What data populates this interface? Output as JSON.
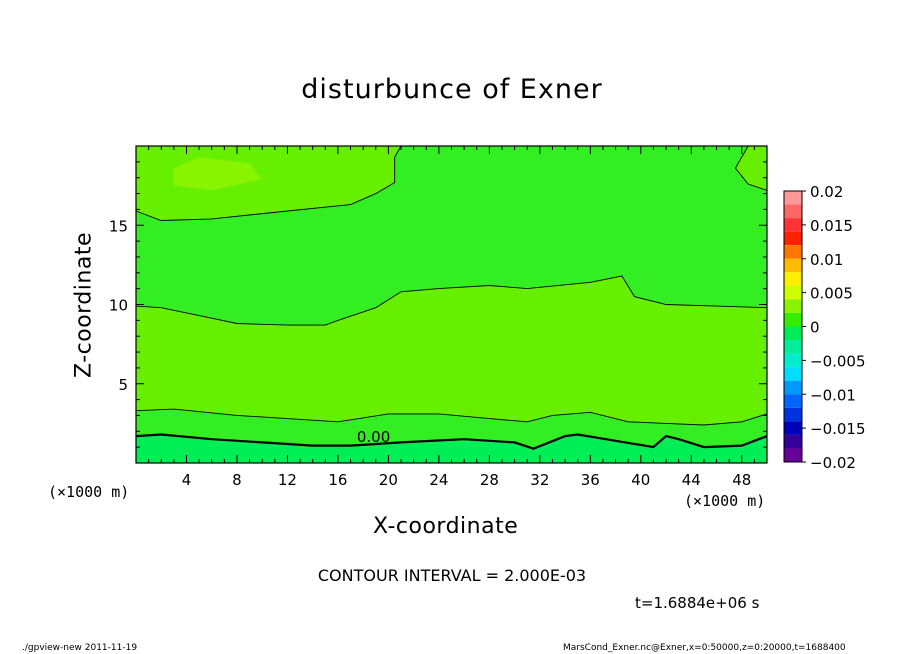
{
  "title": "disturbunce of Exner",
  "footer": {
    "left": "./gpview-new   2011-11-19",
    "right": "MarsCond_Exner.nc@Exner,x=0:50000,z=0:20000,t=1688400"
  },
  "contour_interval": "CONTOUR INTERVAL = 2.000E-03",
  "time_label": "t=1.6884e+06 s",
  "colors": {
    "frame": "#000000",
    "band_neg": "#00ee55",
    "band_zero": "#33ee22",
    "band_pos": "#66f000",
    "band_pos2": "#88f400"
  },
  "chart_data": {
    "type": "heatmap",
    "title": "disturbunce of Exner",
    "xlabel": "X-coordinate",
    "ylabel": "Z-coordinate",
    "x_unit_label": "(×1000 m)",
    "xlim": [
      0,
      50
    ],
    "ylim": [
      0,
      20
    ],
    "x_ticks": [
      4,
      8,
      12,
      16,
      20,
      24,
      28,
      32,
      36,
      40,
      44,
      48
    ],
    "y_ticks": [
      5,
      10,
      15
    ],
    "contour_labels": [
      {
        "text": "0.00",
        "x": 17.5,
        "z": 1.2
      }
    ],
    "colorbar": {
      "ticks": [
        "0.02",
        "0.015",
        "0.01",
        "0.005",
        "0",
        "−0.005",
        "−0.01",
        "−0.015",
        "−0.02"
      ],
      "levels": [
        {
          "from": 0.018,
          "to": 0.02,
          "color": "#ff9999"
        },
        {
          "from": 0.016,
          "to": 0.018,
          "color": "#ff6666"
        },
        {
          "from": 0.014,
          "to": 0.016,
          "color": "#ff3333"
        },
        {
          "from": 0.012,
          "to": 0.014,
          "color": "#ff2200"
        },
        {
          "from": 0.01,
          "to": 0.012,
          "color": "#ff7700"
        },
        {
          "from": 0.008,
          "to": 0.01,
          "color": "#ffbb00"
        },
        {
          "from": 0.006,
          "to": 0.008,
          "color": "#ffee00"
        },
        {
          "from": 0.004,
          "to": 0.006,
          "color": "#ccff00"
        },
        {
          "from": 0.002,
          "to": 0.004,
          "color": "#88f400"
        },
        {
          "from": 0.0,
          "to": 0.002,
          "color": "#33ee00"
        },
        {
          "from": -0.002,
          "to": 0.0,
          "color": "#00ee55"
        },
        {
          "from": -0.004,
          "to": -0.002,
          "color": "#00ee99"
        },
        {
          "from": -0.006,
          "to": -0.004,
          "color": "#00eecc"
        },
        {
          "from": -0.008,
          "to": -0.006,
          "color": "#00ddff"
        },
        {
          "from": -0.01,
          "to": -0.008,
          "color": "#0099ff"
        },
        {
          "from": -0.012,
          "to": -0.01,
          "color": "#0066ff"
        },
        {
          "from": -0.014,
          "to": -0.012,
          "color": "#0033dd"
        },
        {
          "from": -0.016,
          "to": -0.014,
          "color": "#0000bb"
        },
        {
          "from": -0.018,
          "to": -0.016,
          "color": "#330099"
        },
        {
          "from": -0.02,
          "to": -0.018,
          "color": "#660099"
        }
      ]
    },
    "contour_lines": [
      {
        "level": 0.0,
        "bold": true,
        "points": [
          [
            0,
            1.7
          ],
          [
            2,
            1.8
          ],
          [
            6,
            1.5
          ],
          [
            10,
            1.3
          ],
          [
            14,
            1.1
          ],
          [
            17,
            1.1
          ],
          [
            21,
            1.3
          ],
          [
            26,
            1.5
          ],
          [
            30,
            1.3
          ],
          [
            31.5,
            0.9
          ],
          [
            34,
            1.7
          ],
          [
            35,
            1.8
          ],
          [
            38,
            1.4
          ],
          [
            41,
            1.0
          ],
          [
            42,
            1.7
          ],
          [
            43,
            1.5
          ],
          [
            45,
            1.0
          ],
          [
            48,
            1.1
          ],
          [
            50,
            1.7
          ]
        ]
      },
      {
        "level": 0.002,
        "bold": false,
        "points": [
          [
            0,
            3.3
          ],
          [
            3,
            3.4
          ],
          [
            8,
            3.0
          ],
          [
            12,
            2.8
          ],
          [
            16,
            2.6
          ],
          [
            20,
            3.1
          ],
          [
            24,
            3.1
          ],
          [
            28,
            2.8
          ],
          [
            31,
            2.6
          ],
          [
            33,
            3.0
          ],
          [
            36,
            3.2
          ],
          [
            39,
            2.6
          ],
          [
            42,
            2.5
          ],
          [
            45,
            2.4
          ],
          [
            48,
            2.6
          ],
          [
            50,
            3.1
          ]
        ]
      },
      {
        "level": 0.002,
        "bold": false,
        "points": [
          [
            0,
            9.9
          ],
          [
            2,
            9.8
          ],
          [
            5,
            9.3
          ],
          [
            8,
            8.8
          ],
          [
            12,
            8.7
          ],
          [
            15,
            8.7
          ],
          [
            16,
            9.0
          ],
          [
            19,
            9.8
          ],
          [
            21,
            10.8
          ],
          [
            24,
            11.0
          ],
          [
            28,
            11.2
          ],
          [
            31,
            11.0
          ],
          [
            36,
            11.4
          ],
          [
            38.5,
            11.8
          ],
          [
            39.5,
            10.5
          ],
          [
            42,
            10.0
          ],
          [
            46,
            9.9
          ],
          [
            50,
            9.8
          ]
        ]
      },
      {
        "level": 0.004,
        "bold": false,
        "points": [
          [
            0,
            15.9
          ],
          [
            2,
            15.3
          ],
          [
            6,
            15.4
          ],
          [
            12,
            15.9
          ],
          [
            17,
            16.3
          ],
          [
            19,
            17.0
          ],
          [
            20.5,
            17.7
          ],
          [
            20.5,
            19.3
          ],
          [
            21,
            20
          ]
        ]
      },
      {
        "level": 0.004,
        "bold": false,
        "points": [
          [
            48.5,
            20
          ],
          [
            47.5,
            18.6
          ],
          [
            48.5,
            17.6
          ],
          [
            50,
            17.2
          ]
        ]
      }
    ],
    "regions": [
      {
        "name": "lower-bright-band-1",
        "fill": "#66f000",
        "points": [
          [
            0,
            4.0
          ],
          [
            5,
            4.3
          ],
          [
            10,
            4.6
          ],
          [
            14,
            4.7
          ],
          [
            18,
            4.5
          ],
          [
            21,
            4.6
          ],
          [
            17,
            5.2
          ],
          [
            13,
            6.3
          ],
          [
            9,
            6.5
          ],
          [
            5,
            7.1
          ],
          [
            0,
            7.4
          ]
        ]
      },
      {
        "name": "lower-bright-band-2",
        "fill": "#66f000",
        "points": [
          [
            27,
            5.1
          ],
          [
            30,
            4.1
          ],
          [
            35,
            4.2
          ],
          [
            40,
            4.5
          ],
          [
            44,
            5.0
          ],
          [
            42,
            5.9
          ],
          [
            38,
            6.8
          ],
          [
            33,
            7.5
          ],
          [
            29,
            7.1
          ],
          [
            27,
            6.0
          ]
        ]
      },
      {
        "name": "upper-bright",
        "fill": "#88f400",
        "points": [
          [
            3,
            17.5
          ],
          [
            6,
            17.2
          ],
          [
            10,
            17.9
          ],
          [
            9,
            18.9
          ],
          [
            5,
            19.3
          ],
          [
            3,
            18.6
          ]
        ]
      }
    ]
  }
}
